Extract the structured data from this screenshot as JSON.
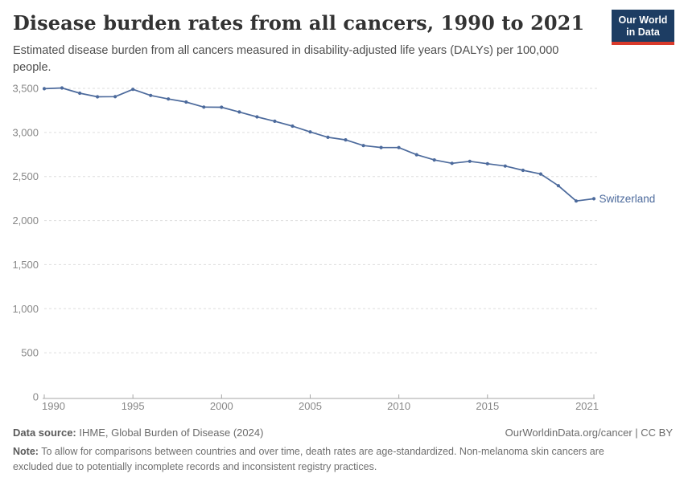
{
  "header": {
    "title": "Disease burden rates from all cancers, 1990 to 2021",
    "subtitle": "Estimated disease burden from all cancers measured in disability-adjusted life years (DALYs) per 100,000 people.",
    "logo": {
      "line1": "Our World",
      "line2": "in Data",
      "bg_color": "#1d3d63",
      "accent_color": "#d93a2b"
    }
  },
  "chart_data": {
    "type": "line",
    "title": "Disease burden rates from all cancers, 1990 to 2021",
    "xlabel": "",
    "ylabel": "DALYs per 100,000 people",
    "xlim": [
      1990,
      2021
    ],
    "ylim": [
      0,
      3500
    ],
    "x_ticks": [
      1990,
      1995,
      2000,
      2005,
      2010,
      2015,
      2021
    ],
    "y_ticks": [
      0,
      500,
      1000,
      1500,
      2000,
      2500,
      3000,
      3500
    ],
    "grid": "horizontal-dashed",
    "legend_position": "end-of-line",
    "series": [
      {
        "name": "Switzerland",
        "color": "#4c6a9c",
        "x": [
          1990,
          1991,
          1992,
          1993,
          1994,
          1995,
          1996,
          1997,
          1998,
          1999,
          2000,
          2001,
          2002,
          2003,
          2004,
          2005,
          2006,
          2007,
          2008,
          2009,
          2010,
          2011,
          2012,
          2013,
          2014,
          2015,
          2016,
          2017,
          2018,
          2019,
          2020,
          2021
        ],
        "values": [
          3496,
          3505,
          3445,
          3404,
          3406,
          3489,
          3420,
          3380,
          3345,
          3288,
          3286,
          3232,
          3176,
          3127,
          3072,
          3006,
          2945,
          2916,
          2851,
          2829,
          2828,
          2747,
          2688,
          2650,
          2672,
          2645,
          2619,
          2570,
          2528,
          2395,
          2222,
          2248
        ]
      }
    ],
    "axis_color": "#a5a5a5",
    "gridline_color": "#dddddd",
    "tick_label_color": "#878787"
  },
  "footer": {
    "data_source_label": "Data source:",
    "data_source_value": " IHME, Global Burden of Disease (2024)",
    "credit": "OurWorldinData.org/cancer | CC BY",
    "note_label": "Note:",
    "note_value": " To allow for comparisons between countries and over time, death rates are age-standardized. Non-melanoma skin cancers are excluded due to potentially incomplete records and inconsistent registry practices."
  }
}
